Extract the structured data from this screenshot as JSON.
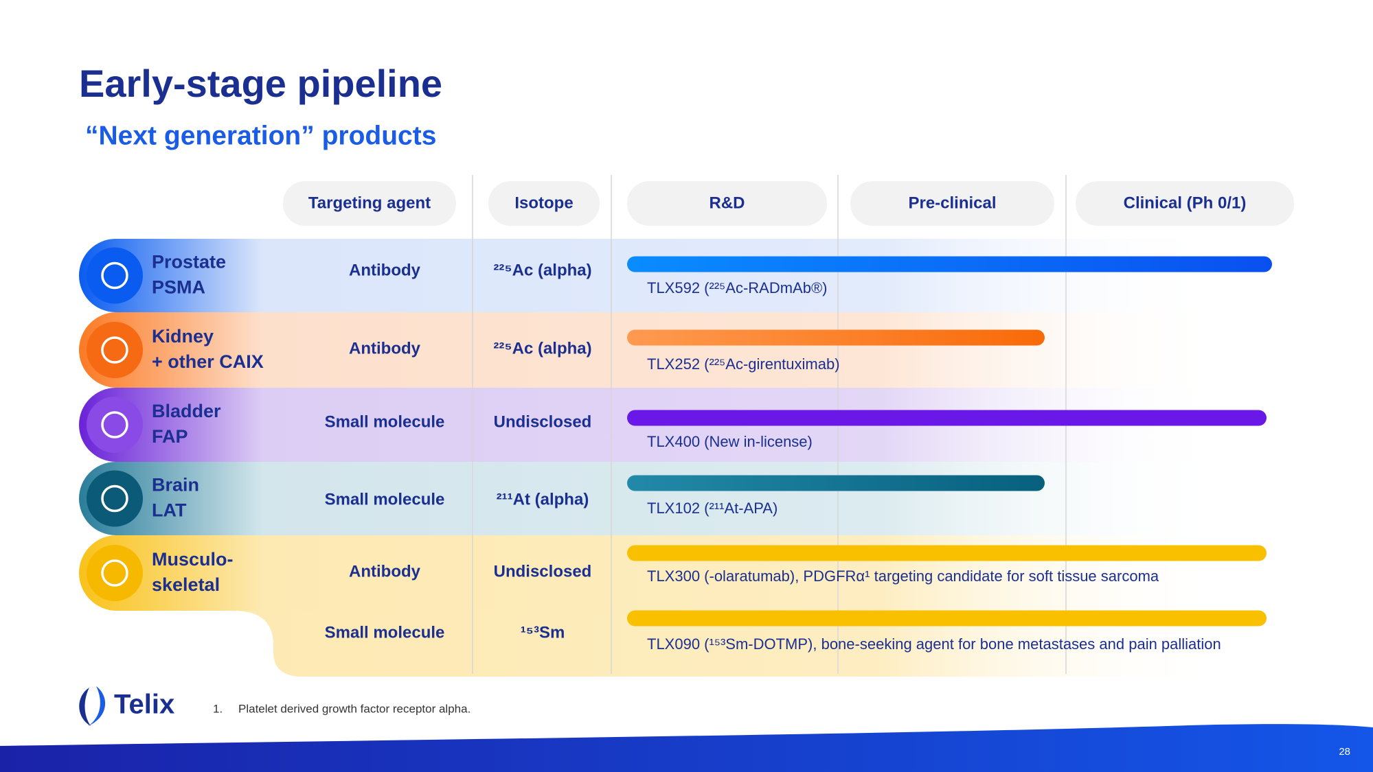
{
  "header": {
    "title": "Early-stage pipeline",
    "subtitle": "“Next generation” products"
  },
  "columns": [
    "Targeting agent",
    "Isotope",
    "R&D",
    "Pre-clinical",
    "Clinical (Ph 0/1)"
  ],
  "rows": [
    {
      "indication": [
        "Prostate",
        "PSMA"
      ],
      "programs": [
        {
          "agent": "Antibody",
          "isotope": "²²⁵Ac (alpha)",
          "candidate": "TLX592 (²²⁵Ac-RADmAb®)"
        }
      ]
    },
    {
      "indication": [
        "Kidney",
        "+ other CAIX"
      ],
      "programs": [
        {
          "agent": "Antibody",
          "isotope": "²²⁵Ac (alpha)",
          "candidate": "TLX252 (²²⁵Ac-girentuximab)"
        }
      ]
    },
    {
      "indication": [
        "Bladder",
        "FAP"
      ],
      "programs": [
        {
          "agent": "Small molecule",
          "isotope": "Undisclosed",
          "candidate": "TLX400 (New in-license)"
        }
      ]
    },
    {
      "indication": [
        "Brain",
        "LAT"
      ],
      "programs": [
        {
          "agent": "Small molecule",
          "isotope": "²¹¹At (alpha)",
          "candidate": "TLX102 (²¹¹At-APA)"
        }
      ]
    },
    {
      "indication": [
        "Musculo-",
        "skeletal"
      ],
      "programs": [
        {
          "agent": "Antibody",
          "isotope": "Undisclosed",
          "candidate": "TLX300 (-olaratumab), PDGFRα¹ targeting candidate for soft tissue sarcoma"
        },
        {
          "agent": "Small molecule",
          "isotope": "¹⁵³Sm",
          "candidate": "TLX090 (¹⁵³Sm-DOTMP), bone-seeking agent for bone metastases and pain palliation"
        }
      ]
    }
  ],
  "footnote": {
    "number": "1.",
    "text": "Platelet derived growth factor receptor alpha."
  },
  "logo": "Telix",
  "page_number": "28"
}
